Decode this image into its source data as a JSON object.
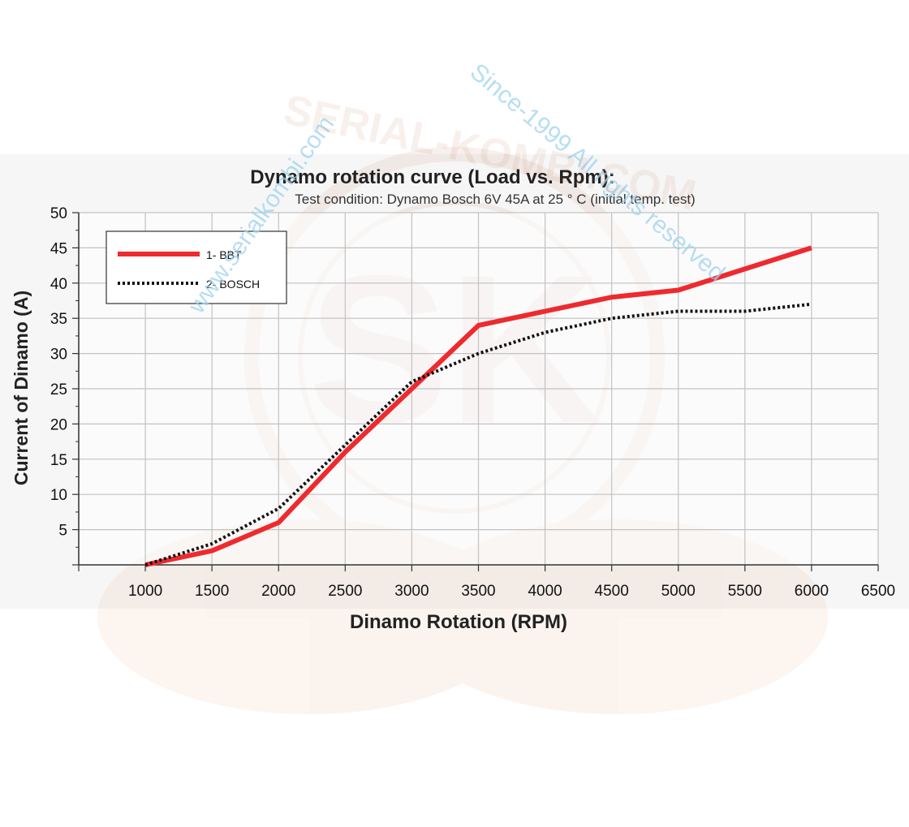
{
  "watermark": {
    "line1": "www.serialkombi.com",
    "line2": "Since-1999 All rights reserved",
    "logo_text": "SERIAL-KOMBI.COM"
  },
  "chart_data": {
    "type": "line",
    "title": "Dynamo rotation curve (Load vs. Rpm):",
    "subtitle": "Test condition: Dynamo Bosch 6V 45A at 25 ° C (initial temp. test)",
    "xlabel": "Dinamo Rotation (RPM)",
    "ylabel": "Current of Dinamo (A)",
    "xlim": [
      500,
      6500
    ],
    "ylim": [
      0,
      50
    ],
    "x_ticks": [
      1000,
      1500,
      2000,
      2500,
      3000,
      3500,
      4000,
      4500,
      5000,
      5500,
      6000,
      6500
    ],
    "y_ticks": [
      5,
      10,
      15,
      20,
      25,
      30,
      35,
      40,
      45,
      50
    ],
    "grid": true,
    "legend_position": "top-left",
    "series": [
      {
        "name": "1- BBT",
        "color": "#ee2a2f",
        "style": "solid",
        "x": [
          1000,
          1500,
          2000,
          2500,
          3000,
          3500,
          4000,
          4500,
          5000,
          5500,
          6000
        ],
        "y": [
          0,
          2,
          6,
          16,
          25,
          34,
          36,
          38,
          39,
          42,
          45
        ]
      },
      {
        "name": "2- BOSCH",
        "color": "#111111",
        "style": "dotted",
        "x": [
          1000,
          1500,
          2000,
          2500,
          3000,
          3500,
          4000,
          4500,
          5000,
          5500,
          6000
        ],
        "y": [
          0,
          3,
          8,
          17,
          26,
          30,
          33,
          35,
          36,
          36,
          37
        ]
      }
    ]
  }
}
